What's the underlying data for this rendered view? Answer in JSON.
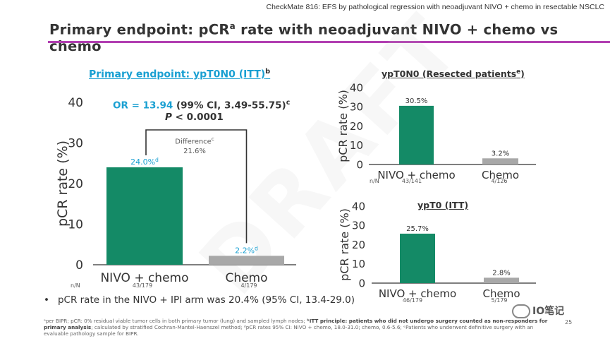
{
  "header": {
    "text": "CheckMate 816: EFS by pathological regression with neoadjuvant NIVO + chemo in resectable NSCLC"
  },
  "slide_title": {
    "text": "Primary endpoint: pCR",
    "sup": "a",
    "rest": " rate with neoadjuvant NIVO + chemo vs chemo"
  },
  "watermark": "DRAFT",
  "left_panel": {
    "title": "Primary endpoint: ypT0N0 (ITT)",
    "title_sup": "b",
    "odds_ratio_label": "OR = 13.94",
    "odds_ratio_ci": " (99% CI, 3.49-55.75)",
    "odds_ratio_sup": "c",
    "p_label": "P",
    "p_value": " < 0.0001",
    "difference_label": "Difference",
    "difference_sup": "c",
    "difference_value": "21.6%",
    "nn_label": "n/N"
  },
  "right_top": {
    "title": "ypT0N0 (Resected patients",
    "title_sup": "e",
    "title_end": ")",
    "nn_label": "n/N"
  },
  "right_bottom": {
    "title": "ypT0 (ITT)"
  },
  "bullet": "pCR rate in the NIVO + IPI arm was 20.4% (95% CI, 13.4-29.0)",
  "footnote_a": "ᵃper BIPR; pCR: 0% residual viable tumor cells in both primary tumor (lung) and sampled lymph nodes; ",
  "footnote_b_bold": "ᵇITT principle: patients who did not undergo surgery counted as non-responders for primary analysis",
  "footnote_rest": "; calculated by stratified Cochran-Mantel-Haenszel method; ᵈpCR rates 95% CI: NIVO + chemo, 18.0-31.0; chemo, 0.6-5.6; ᵉPatients who underwent definitive surgery with an evaluable pathology sample for BIPR.",
  "page_number": "25",
  "wechat_label": "IO笔记",
  "colors": {
    "nivo": "#148a66",
    "chemo": "#a8a8a8",
    "blue": "#1aa0d2",
    "rule": "#b23fb2"
  },
  "chart_data": [
    {
      "id": "left",
      "type": "bar",
      "ylabel": "pCR rate (%)",
      "ylim": [
        0,
        40
      ],
      "yticks": [
        0,
        10,
        20,
        30,
        40
      ],
      "categories": [
        "NIVO + chemo",
        "Chemo"
      ],
      "values": [
        24.0,
        2.2
      ],
      "value_labels": [
        "24.0%",
        "2.2%"
      ],
      "value_label_sup": "d",
      "nn": [
        "43/179",
        "4/179"
      ],
      "colors": [
        "#148a66",
        "#a8a8a8"
      ]
    },
    {
      "id": "rt",
      "type": "bar",
      "ylabel": "pCR rate (%)",
      "ylim": [
        0,
        40
      ],
      "yticks": [
        0,
        10,
        20,
        30,
        40
      ],
      "categories": [
        "NIVO + chemo",
        "Chemo"
      ],
      "values": [
        30.5,
        3.2
      ],
      "value_labels": [
        "30.5%",
        "3.2%"
      ],
      "nn": [
        "43/141",
        "4/126"
      ],
      "colors": [
        "#148a66",
        "#a8a8a8"
      ]
    },
    {
      "id": "rb",
      "type": "bar",
      "ylabel": "pCR rate (%)",
      "ylim": [
        0,
        40
      ],
      "yticks": [
        0,
        10,
        20,
        30,
        40
      ],
      "categories": [
        "NIVO + chemo",
        "Chemo"
      ],
      "values": [
        25.7,
        2.8
      ],
      "value_labels": [
        "25.7%",
        "2.8%"
      ],
      "nn": [
        "46/179",
        "5/179"
      ],
      "colors": [
        "#148a66",
        "#a8a8a8"
      ]
    }
  ]
}
